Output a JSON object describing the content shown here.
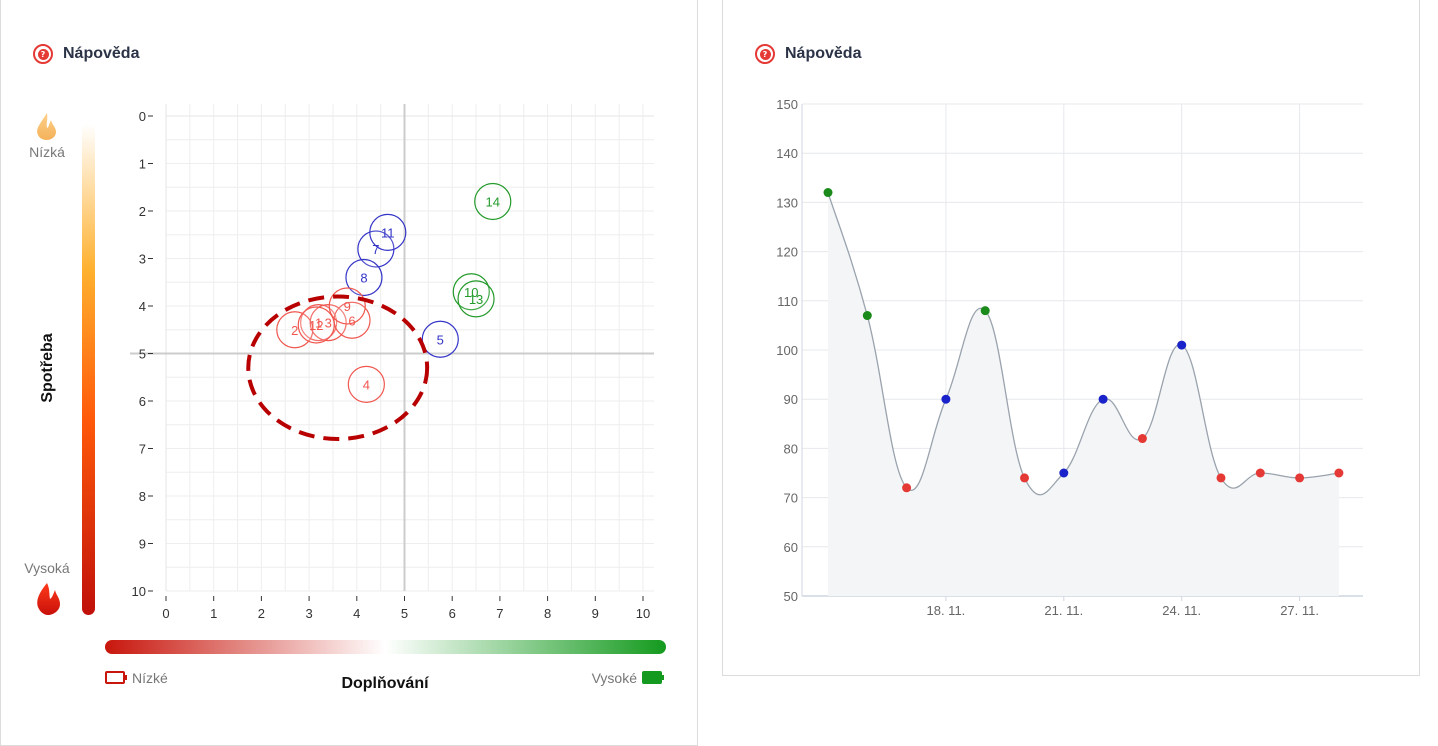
{
  "left_panel": {
    "help_label": "Nápověda",
    "y_title": "Spotřeba",
    "y_low_label": "Nízká",
    "y_high_label": "Vysoká",
    "x_title": "Doplňování",
    "x_low_label": "Nízké",
    "x_high_label": "Vysoké"
  },
  "right_panel": {
    "help_label": "Nápověda"
  },
  "colors": {
    "red": "#f0574f",
    "blue": "#3535c8",
    "green": "#239a2a",
    "dark_red": "#b80000",
    "dot_red": "#e53935",
    "dot_blue": "#1a23c9",
    "dot_green": "#1a8a1a"
  },
  "chart_data": [
    {
      "type": "scatter",
      "xlim": [
        0,
        10
      ],
      "ylim": [
        0,
        10
      ],
      "y_inverted": true,
      "x_ticks": [
        0,
        1,
        2,
        3,
        4,
        5,
        6,
        7,
        8,
        9,
        10
      ],
      "y_ticks": [
        0,
        1,
        2,
        3,
        4,
        5,
        6,
        7,
        8,
        9,
        10
      ],
      "reference_lines": {
        "x": 5,
        "y": 5
      },
      "highlight_circle": {
        "cx": 3.6,
        "cy": 5.3,
        "r": 1.5
      },
      "points": [
        {
          "label": "1",
          "x": 3.2,
          "y": 4.35,
          "color": "red"
        },
        {
          "label": "2",
          "x": 2.7,
          "y": 4.5,
          "color": "red"
        },
        {
          "label": "3",
          "x": 3.4,
          "y": 4.35,
          "color": "red"
        },
        {
          "label": "4",
          "x": 4.2,
          "y": 5.65,
          "color": "red"
        },
        {
          "label": "5",
          "x": 5.75,
          "y": 4.7,
          "color": "blue"
        },
        {
          "label": "6",
          "x": 3.9,
          "y": 4.3,
          "color": "red"
        },
        {
          "label": "7",
          "x": 4.4,
          "y": 2.8,
          "color": "blue"
        },
        {
          "label": "8",
          "x": 4.15,
          "y": 3.4,
          "color": "blue"
        },
        {
          "label": "9",
          "x": 3.8,
          "y": 4.0,
          "color": "red"
        },
        {
          "label": "10",
          "x": 6.4,
          "y": 3.7,
          "color": "green"
        },
        {
          "label": "11",
          "x": 4.65,
          "y": 2.45,
          "color": "blue"
        },
        {
          "label": "12",
          "x": 3.15,
          "y": 4.4,
          "color": "red"
        },
        {
          "label": "13",
          "x": 6.5,
          "y": 3.85,
          "color": "green"
        },
        {
          "label": "14",
          "x": 6.85,
          "y": 1.8,
          "color": "green"
        }
      ]
    },
    {
      "type": "area",
      "ylim": [
        50,
        150
      ],
      "y_ticks": [
        50,
        60,
        70,
        80,
        90,
        100,
        110,
        120,
        130,
        140,
        150
      ],
      "x_start_date": "2023-11-15",
      "x_end_date": "2023-11-29",
      "x_tick_labels": [
        "18. 11.",
        "21. 11.",
        "24. 11.",
        "27. 11."
      ],
      "x_tick_dates": [
        "2023-11-18",
        "2023-11-21",
        "2023-11-24",
        "2023-11-27"
      ],
      "points": [
        {
          "date": "2023-11-15",
          "value": 132,
          "color": "green"
        },
        {
          "date": "2023-11-16",
          "value": 107,
          "color": "green"
        },
        {
          "date": "2023-11-17",
          "value": 72,
          "color": "red"
        },
        {
          "date": "2023-11-18",
          "value": 90,
          "color": "blue"
        },
        {
          "date": "2023-11-19",
          "value": 108,
          "color": "green"
        },
        {
          "date": "2023-11-20",
          "value": 74,
          "color": "red"
        },
        {
          "date": "2023-11-21",
          "value": 75,
          "color": "blue"
        },
        {
          "date": "2023-11-22",
          "value": 90,
          "color": "blue"
        },
        {
          "date": "2023-11-23",
          "value": 82,
          "color": "red"
        },
        {
          "date": "2023-11-24",
          "value": 101,
          "color": "blue"
        },
        {
          "date": "2023-11-25",
          "value": 74,
          "color": "red"
        },
        {
          "date": "2023-11-26",
          "value": 75,
          "color": "red"
        },
        {
          "date": "2023-11-27",
          "value": 74,
          "color": "red"
        },
        {
          "date": "2023-11-28",
          "value": 75,
          "color": "red"
        }
      ]
    }
  ]
}
